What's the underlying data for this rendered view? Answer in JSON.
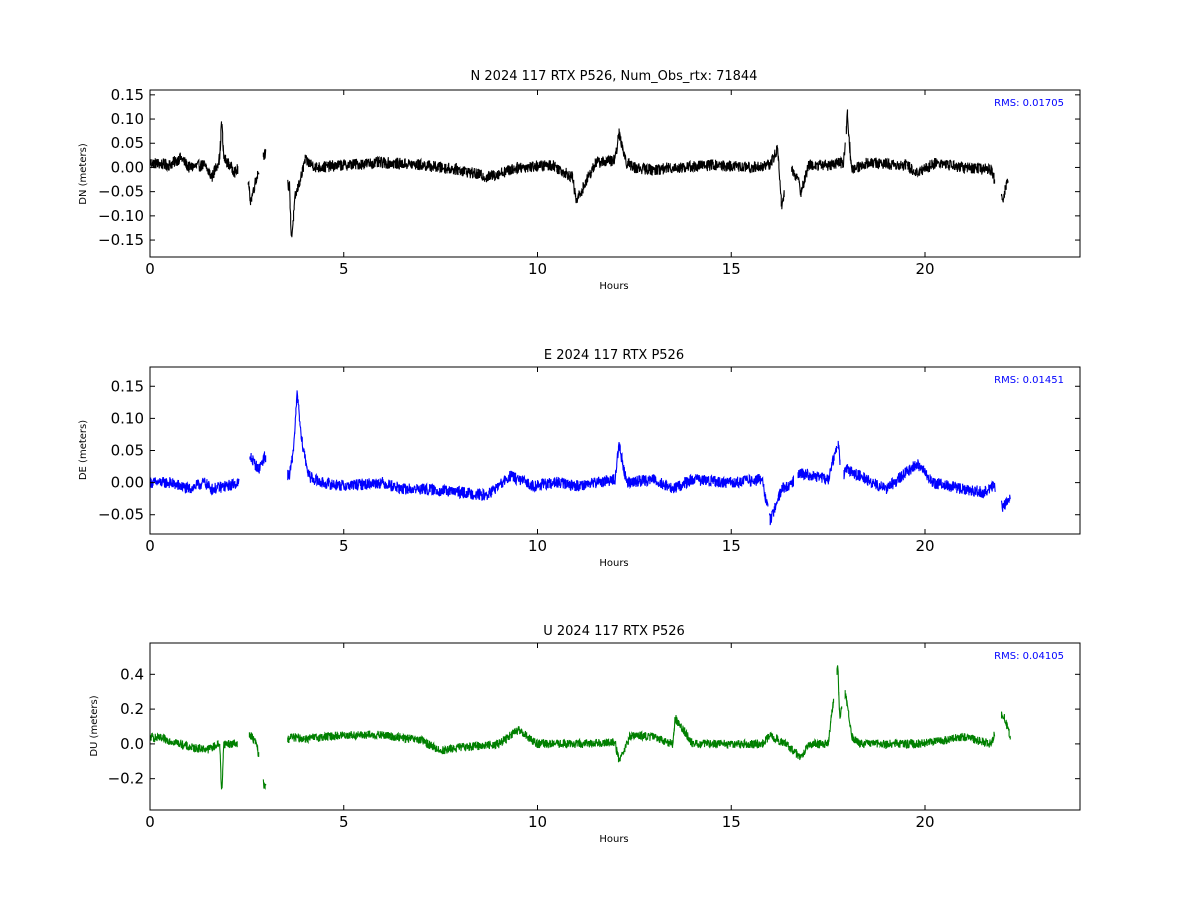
{
  "figure": {
    "background": "#ffffff"
  },
  "chart_data": [
    {
      "type": "line",
      "title": "N 2024 117 RTX  P526, Num_Obs_rtx: 71844",
      "xlabel": "Hours",
      "ylabel": "DN (meters)",
      "xlim": [
        0,
        24
      ],
      "ylim": [
        -0.185,
        0.16
      ],
      "xticks": [
        0,
        5,
        10,
        15,
        20
      ],
      "xtick_labels": [
        "0",
        "5",
        "10",
        "15",
        "20"
      ],
      "yticks": [
        -0.15,
        -0.1,
        -0.05,
        0.0,
        0.05,
        0.1,
        0.15
      ],
      "ytick_labels": [
        "−0.15",
        "−0.10",
        "−0.05",
        "0.00",
        "0.05",
        "0.10",
        "0.15"
      ],
      "annotation": "RMS:  0.01705",
      "annotation_color": "#0000ff",
      "annotation_position": "top-right",
      "grid": false,
      "series": [
        {
          "color": "#000000",
          "noise": 0.012,
          "x": [
            0.0,
            0.5,
            0.8,
            1.0,
            1.4,
            1.6,
            1.8,
            1.85,
            1.9,
            2.0,
            2.2,
            2.45,
            2.6,
            2.75,
            2.95,
            3.6,
            3.65,
            3.75,
            3.9,
            4.0,
            4.3,
            5.0,
            6.0,
            7.0,
            8.0,
            8.7,
            9.5,
            10.4,
            10.9,
            11.0,
            11.5,
            12.0,
            12.1,
            12.3,
            12.5,
            13.0,
            13.5,
            13.7,
            14.5,
            15.5,
            16.0,
            16.2,
            16.3,
            16.5,
            16.7,
            16.8,
            17.0,
            17.5,
            17.9,
            18.0,
            18.1,
            18.5,
            19.5,
            19.8,
            20.3,
            21.0,
            21.7,
            22.0,
            22.15
          ],
          "y": [
            0.01,
            0.005,
            0.02,
            0.0,
            0.005,
            -0.02,
            0.02,
            0.1,
            0.02,
            0.01,
            -0.01,
            0.015,
            -0.07,
            -0.02,
            0.03,
            -0.04,
            -0.15,
            -0.06,
            -0.02,
            0.015,
            0.0,
            0.005,
            0.01,
            0.005,
            -0.005,
            -0.02,
            0.0,
            0.005,
            -0.02,
            -0.07,
            0.01,
            0.015,
            0.07,
            0.01,
            0.0,
            -0.005,
            0.0,
            0.0,
            0.005,
            0.0,
            0.005,
            0.04,
            -0.08,
            0.0,
            -0.02,
            -0.05,
            0.005,
            0.005,
            0.01,
            0.11,
            -0.005,
            0.01,
            0.005,
            -0.01,
            0.01,
            0.0,
            -0.005,
            -0.07,
            -0.02
          ],
          "breaks": [
            [
              2.27,
              2.52
            ],
            [
              2.82,
              2.92
            ],
            [
              3.0,
              3.55
            ],
            [
              16.37,
              16.55
            ],
            [
              17.95,
              17.97
            ],
            [
              21.8,
              21.97
            ]
          ]
        }
      ]
    },
    {
      "type": "line",
      "title": "E 2024 117 RTX  P526",
      "xlabel": "Hours",
      "ylabel": "DE (meters)",
      "xlim": [
        0,
        24
      ],
      "ylim": [
        -0.08,
        0.18
      ],
      "xticks": [
        0,
        5,
        10,
        15,
        20
      ],
      "xtick_labels": [
        "0",
        "5",
        "10",
        "15",
        "20"
      ],
      "yticks": [
        -0.05,
        0.0,
        0.05,
        0.1,
        0.15
      ],
      "ytick_labels": [
        "−0.05",
        "0.00",
        "0.05",
        "0.10",
        "0.15"
      ],
      "annotation": "RMS:  0.01451",
      "annotation_color": "#0000ff",
      "annotation_position": "top-right",
      "grid": false,
      "series": [
        {
          "color": "#0000ff",
          "noise": 0.009,
          "x": [
            0.0,
            0.5,
            1.0,
            1.4,
            1.6,
            2.0,
            2.3,
            2.6,
            2.8,
            2.95,
            3.6,
            3.7,
            3.8,
            3.9,
            4.1,
            4.4,
            5.0,
            6.0,
            6.5,
            7.0,
            8.0,
            8.7,
            9.3,
            9.9,
            10.5,
            11.0,
            11.5,
            12.0,
            12.1,
            12.3,
            13.0,
            13.5,
            14.0,
            15.0,
            15.8,
            16.0,
            16.3,
            16.6,
            16.8,
            17.5,
            17.75,
            17.85,
            18.0,
            18.5,
            19.0,
            19.8,
            20.2,
            21.0,
            21.5,
            21.8,
            22.0,
            22.2
          ],
          "y": [
            0.0,
            0.0,
            -0.01,
            0.0,
            -0.01,
            -0.005,
            0.0,
            0.04,
            0.02,
            0.04,
            0.01,
            0.05,
            0.14,
            0.07,
            0.01,
            0.0,
            -0.005,
            0.0,
            -0.01,
            -0.01,
            -0.015,
            -0.02,
            0.01,
            -0.005,
            0.0,
            -0.005,
            0.0,
            0.005,
            0.06,
            0.0,
            0.005,
            -0.01,
            0.005,
            0.0,
            0.005,
            -0.06,
            -0.01,
            0.0,
            0.015,
            0.005,
            0.065,
            0.01,
            0.02,
            0.005,
            -0.01,
            0.03,
            0.0,
            -0.01,
            -0.015,
            -0.005,
            -0.04,
            -0.02
          ],
          "breaks": [
            [
              2.3,
              2.57
            ],
            [
              3.0,
              3.55
            ],
            [
              15.95,
              15.99
            ],
            [
              16.62,
              16.72
            ],
            [
              17.72,
              17.74
            ],
            [
              17.82,
              17.9
            ],
            [
              21.82,
              21.97
            ]
          ]
        }
      ]
    },
    {
      "type": "line",
      "title": "U 2024 117 RTX  P526",
      "xlabel": "Hours",
      "ylabel": "DU (meters)",
      "xlim": [
        0,
        24
      ],
      "ylim": [
        -0.38,
        0.58
      ],
      "xticks": [
        0,
        5,
        10,
        15,
        20
      ],
      "xtick_labels": [
        "0",
        "5",
        "10",
        "15",
        "20"
      ],
      "yticks": [
        -0.2,
        0.0,
        0.2,
        0.4
      ],
      "ytick_labels": [
        "−0.2",
        "0.0",
        "0.2",
        "0.4"
      ],
      "annotation": "RMS:  0.04105",
      "annotation_color": "#0000ff",
      "annotation_position": "top-right",
      "grid": false,
      "series": [
        {
          "color": "#008000",
          "noise": 0.025,
          "x": [
            0.0,
            0.5,
            0.8,
            1.0,
            1.5,
            1.8,
            1.85,
            1.9,
            2.2,
            2.6,
            2.75,
            2.95,
            3.6,
            4.0,
            5.0,
            6.0,
            7.0,
            7.5,
            8.0,
            9.0,
            9.5,
            10.0,
            11.0,
            12.0,
            12.1,
            12.4,
            13.0,
            13.5,
            13.55,
            14.0,
            15.0,
            15.8,
            16.0,
            16.4,
            16.8,
            17.0,
            17.5,
            17.75,
            17.8,
            17.95,
            18.1,
            18.3,
            19.0,
            19.8,
            20.5,
            21.0,
            21.7,
            22.0,
            22.2
          ],
          "y": [
            0.04,
            0.02,
            0.0,
            -0.02,
            -0.03,
            0.0,
            -0.3,
            0.0,
            0.0,
            0.05,
            0.0,
            -0.25,
            0.04,
            0.03,
            0.05,
            0.05,
            0.02,
            -0.04,
            -0.02,
            0.0,
            0.08,
            0.0,
            0.0,
            0.01,
            -0.1,
            0.05,
            0.04,
            0.0,
            0.15,
            0.0,
            0.0,
            0.0,
            0.05,
            0.0,
            -0.08,
            0.0,
            0.0,
            0.45,
            0.15,
            0.3,
            0.05,
            0.0,
            0.0,
            0.0,
            0.02,
            0.04,
            0.0,
            0.18,
            0.05
          ],
          "breaks": [
            [
              2.25,
              2.55
            ],
            [
              2.82,
              2.92
            ],
            [
              3.0,
              3.55
            ],
            [
              17.65,
              17.72
            ],
            [
              17.86,
              17.93
            ],
            [
              21.8,
              21.97
            ]
          ]
        }
      ]
    }
  ]
}
